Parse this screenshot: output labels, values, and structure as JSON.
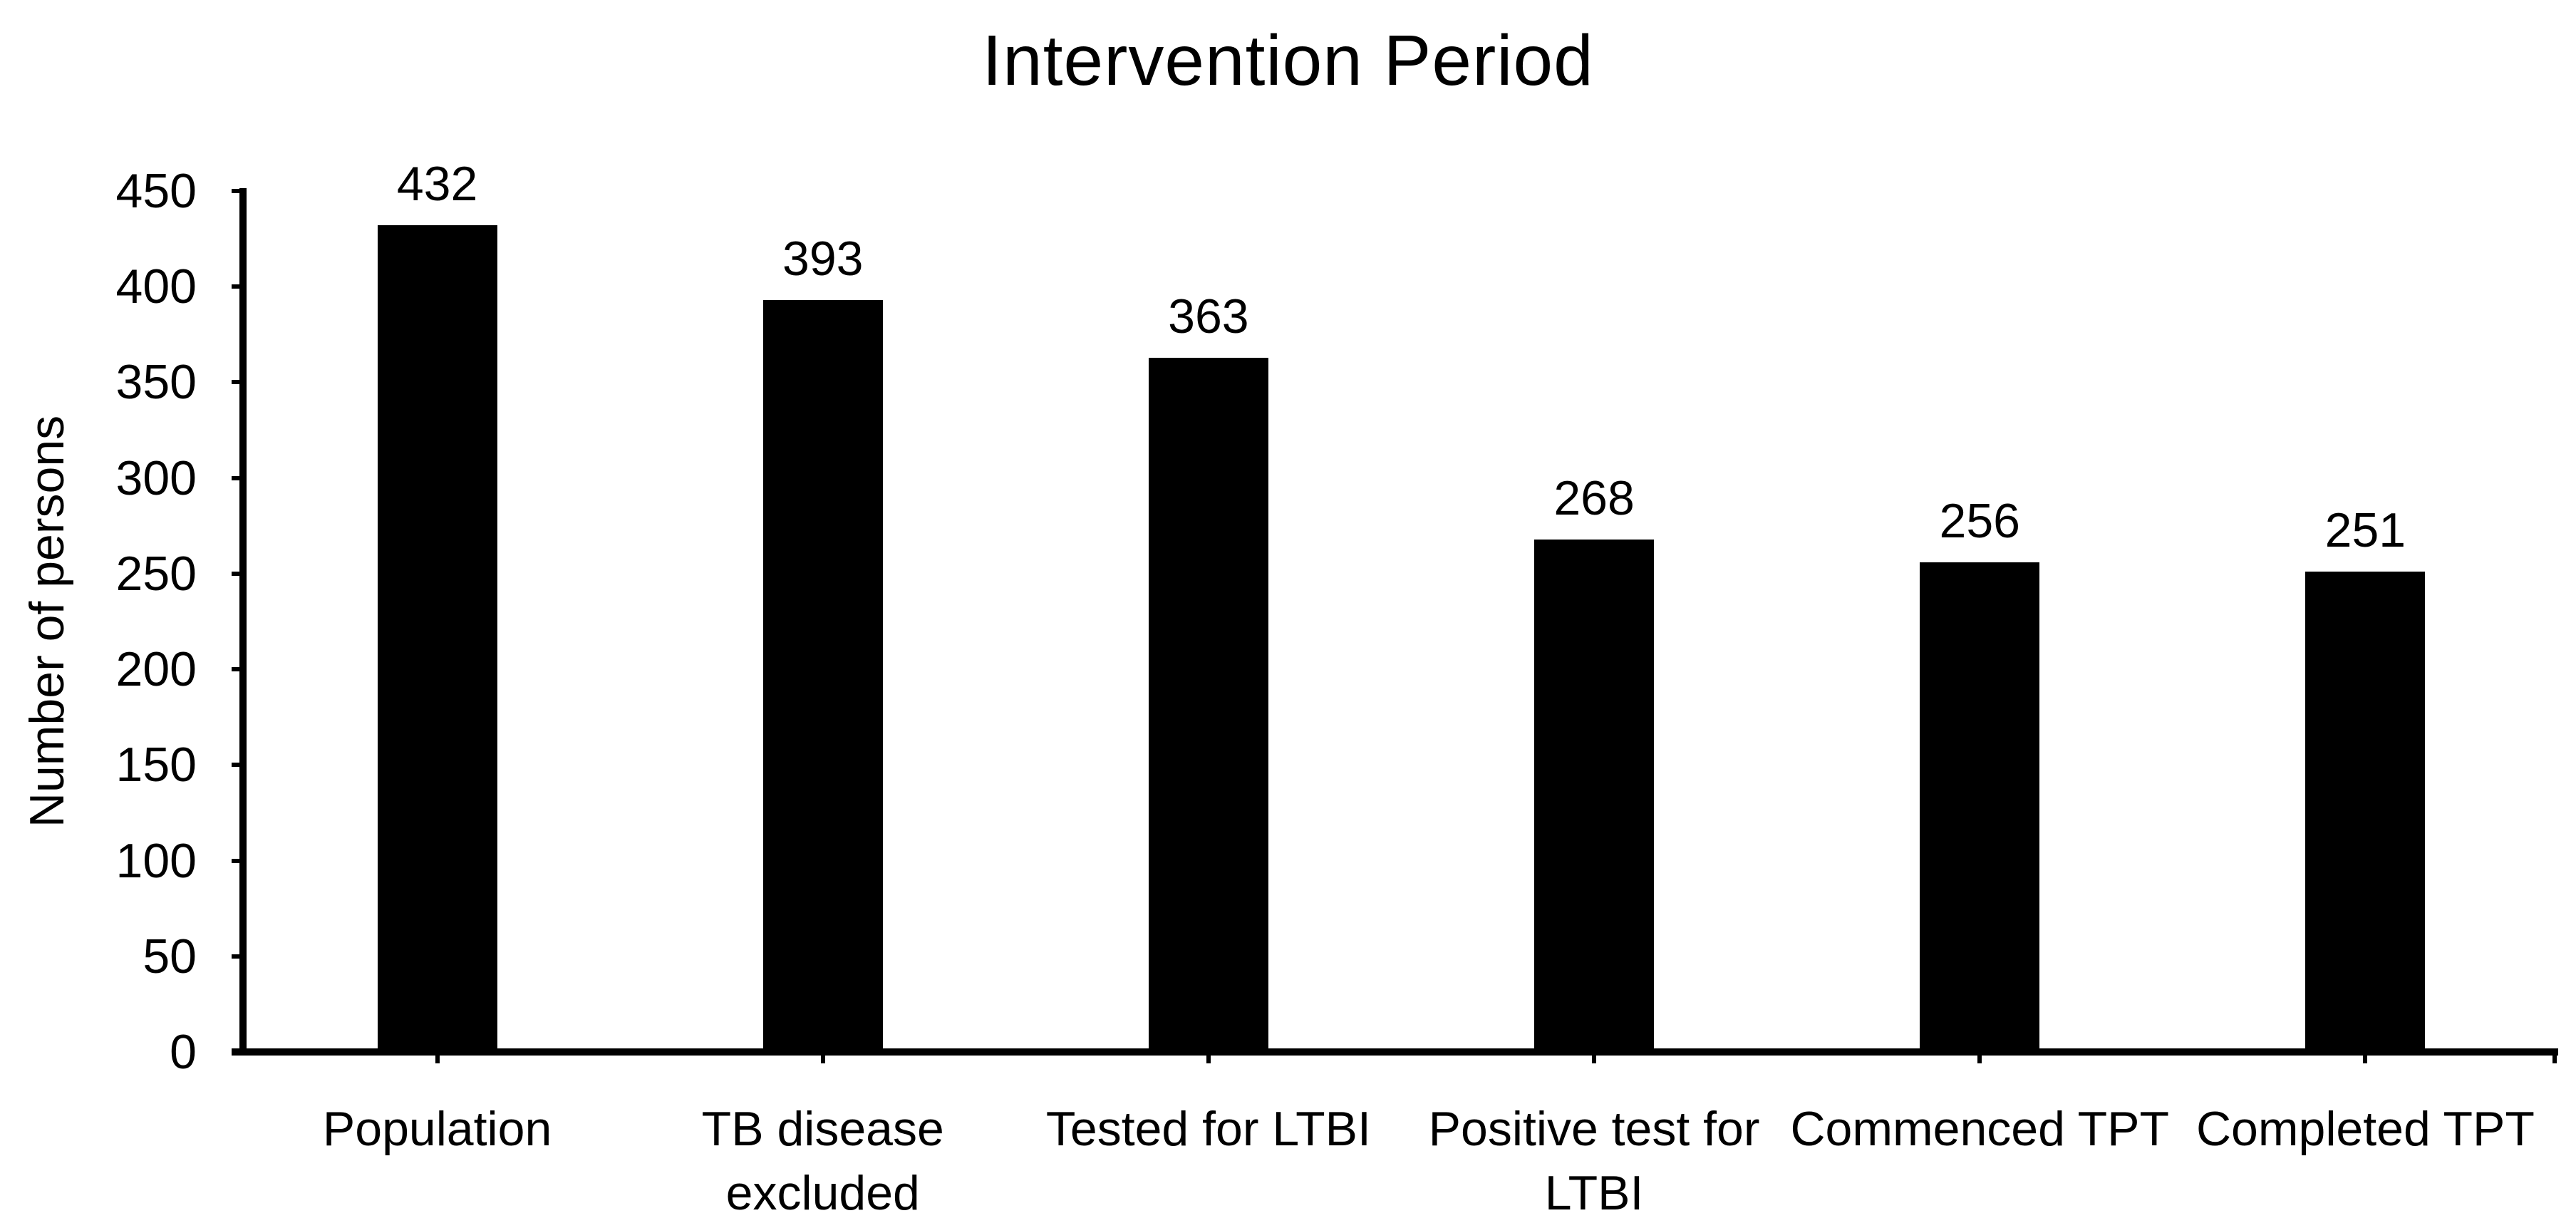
{
  "chart_data": {
    "type": "bar",
    "title": "Intervention Period",
    "categories": [
      "Population",
      "TB disease excluded",
      "Tested for LTBI",
      "Positive test for LTBI",
      "Commenced TPT",
      "Completed TPT"
    ],
    "values": [
      432,
      393,
      363,
      268,
      256,
      251
    ],
    "data_labels": [
      432,
      393,
      363,
      268,
      256,
      251
    ],
    "xlabel": "",
    "ylabel": "Number of persons",
    "ylim": [
      0,
      450
    ],
    "ytick_step": 50,
    "yticks": [
      0,
      50,
      100,
      150,
      200,
      250,
      300,
      350,
      400,
      450
    ],
    "grid": false,
    "legend": "none",
    "bar_color": "#000000",
    "text_color": "#000000",
    "background_color": "#ffffff",
    "show_data_labels": true
  }
}
